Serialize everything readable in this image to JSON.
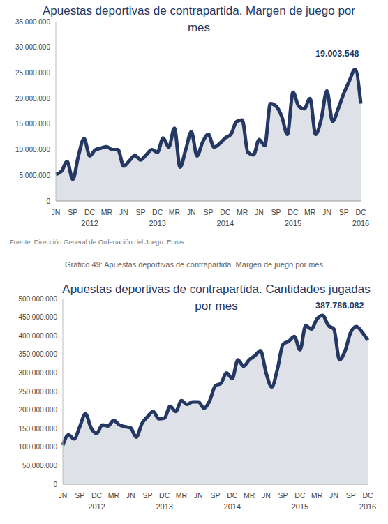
{
  "chart_data": [
    {
      "type": "area",
      "title": "Apuestas deportivas de contrapartida. Margen de juego por mes",
      "source": "Fuente: Dirección General de Ordenación del Juego. Euros.",
      "caption": "Gráfico 49: Apuestas deportivas de contrapartida. Margen de juego por mes",
      "annotations": [
        {
          "text": "19.003.548"
        }
      ],
      "categories": [
        "JN",
        null,
        null,
        "SP",
        null,
        null,
        "DC 2012",
        null,
        null,
        "MR",
        null,
        null,
        "JN",
        null,
        null,
        "SP",
        null,
        null,
        "DC 2013",
        null,
        null,
        "MR",
        null,
        null,
        "JN",
        null,
        null,
        "SP",
        null,
        null,
        "DC 2014",
        null,
        null,
        "MR",
        null,
        null,
        "JN",
        null,
        null,
        "SP",
        null,
        null,
        "DC 2015",
        null,
        null,
        "MR",
        null,
        null,
        "JN",
        null,
        null,
        "SP",
        null,
        null,
        "DC 2016"
      ],
      "values": [
        5200000,
        5800000,
        7700000,
        4200000,
        8800000,
        12200000,
        8800000,
        10000000,
        10300000,
        10600000,
        10000000,
        10000000,
        6800000,
        7800000,
        8900000,
        8000000,
        9000000,
        10000000,
        9500000,
        12300000,
        10500000,
        14200000,
        6600000,
        10000000,
        13500000,
        8800000,
        11500000,
        13000000,
        10500000,
        11200000,
        12300000,
        13000000,
        15500000,
        15800000,
        9500000,
        9000000,
        12000000,
        10800000,
        19000000,
        18500000,
        16500000,
        13000000,
        21200000,
        18500000,
        18000000,
        20000000,
        13000000,
        16000000,
        21500000,
        15500000,
        18000000,
        21000000,
        23500000,
        25700000,
        19003548
      ],
      "color": "#253864",
      "ylim": [
        0,
        35000000
      ],
      "yticks": [
        0,
        {
          "value": 5000000,
          "label": "5.000.000"
        },
        {
          "value": 10000000,
          "label": "10.000.000"
        },
        {
          "value": 15000000,
          "label": "15.000.000"
        },
        {
          "value": 20000000,
          "label": "20.000.000"
        },
        {
          "value": 25000000,
          "label": "25.000.000"
        },
        {
          "value": 30000000,
          "label": "30.000.000"
        },
        {
          "value": 35000000,
          "label": "35.000.000"
        }
      ],
      "grid": false
    },
    {
      "type": "area",
      "title": "Apuestas deportivas de contrapartida. Cantidades jugadas por mes",
      "annotations": [
        {
          "text": "387.786.082"
        }
      ],
      "categories": [
        "JN",
        null,
        null,
        "SP",
        null,
        null,
        "DC 2012",
        null,
        null,
        "MR",
        null,
        null,
        "JN",
        null,
        null,
        "SP",
        null,
        null,
        "DC 2013",
        null,
        null,
        "MR",
        null,
        null,
        "JN",
        null,
        null,
        "SP",
        null,
        null,
        "DC 2014",
        null,
        null,
        "MR",
        null,
        null,
        "JN",
        null,
        null,
        "SP",
        null,
        null,
        "DC 2015",
        null,
        null,
        "MR",
        null,
        null,
        "JN",
        null,
        null,
        "SP",
        null,
        null,
        "DC 2016"
      ],
      "values": [
        105000000,
        133000000,
        122000000,
        155000000,
        190000000,
        152000000,
        137000000,
        160000000,
        157000000,
        172000000,
        160000000,
        155000000,
        152000000,
        127000000,
        163000000,
        182000000,
        196000000,
        176000000,
        178000000,
        210000000,
        196000000,
        225000000,
        215000000,
        222000000,
        222000000,
        205000000,
        225000000,
        265000000,
        272000000,
        300000000,
        285000000,
        335000000,
        318000000,
        335000000,
        346000000,
        360000000,
        300000000,
        262000000,
        310000000,
        377000000,
        385000000,
        398000000,
        362000000,
        427000000,
        418000000,
        445000000,
        455000000,
        428000000,
        418000000,
        335000000,
        360000000,
        410000000,
        425000000,
        410000000,
        387786082
      ],
      "color": "#253864",
      "ylim": [
        0,
        500000000
      ],
      "yticks": [
        0,
        {
          "value": 50000000,
          "label": "50.000.000"
        },
        {
          "value": 100000000,
          "label": "100.000.000"
        },
        {
          "value": 150000000,
          "label": "150.000.000"
        },
        {
          "value": 200000000,
          "label": "200.000.000"
        },
        {
          "value": 250000000,
          "label": "250.000.000"
        },
        {
          "value": 300000000,
          "label": "300.000.000"
        },
        {
          "value": 350000000,
          "label": "350.000.000"
        },
        {
          "value": 400000000,
          "label": "400.000.000"
        },
        {
          "value": 450000000,
          "label": "450.000.000"
        },
        {
          "value": 500000000,
          "label": "500.000.000"
        }
      ],
      "grid": false
    }
  ]
}
